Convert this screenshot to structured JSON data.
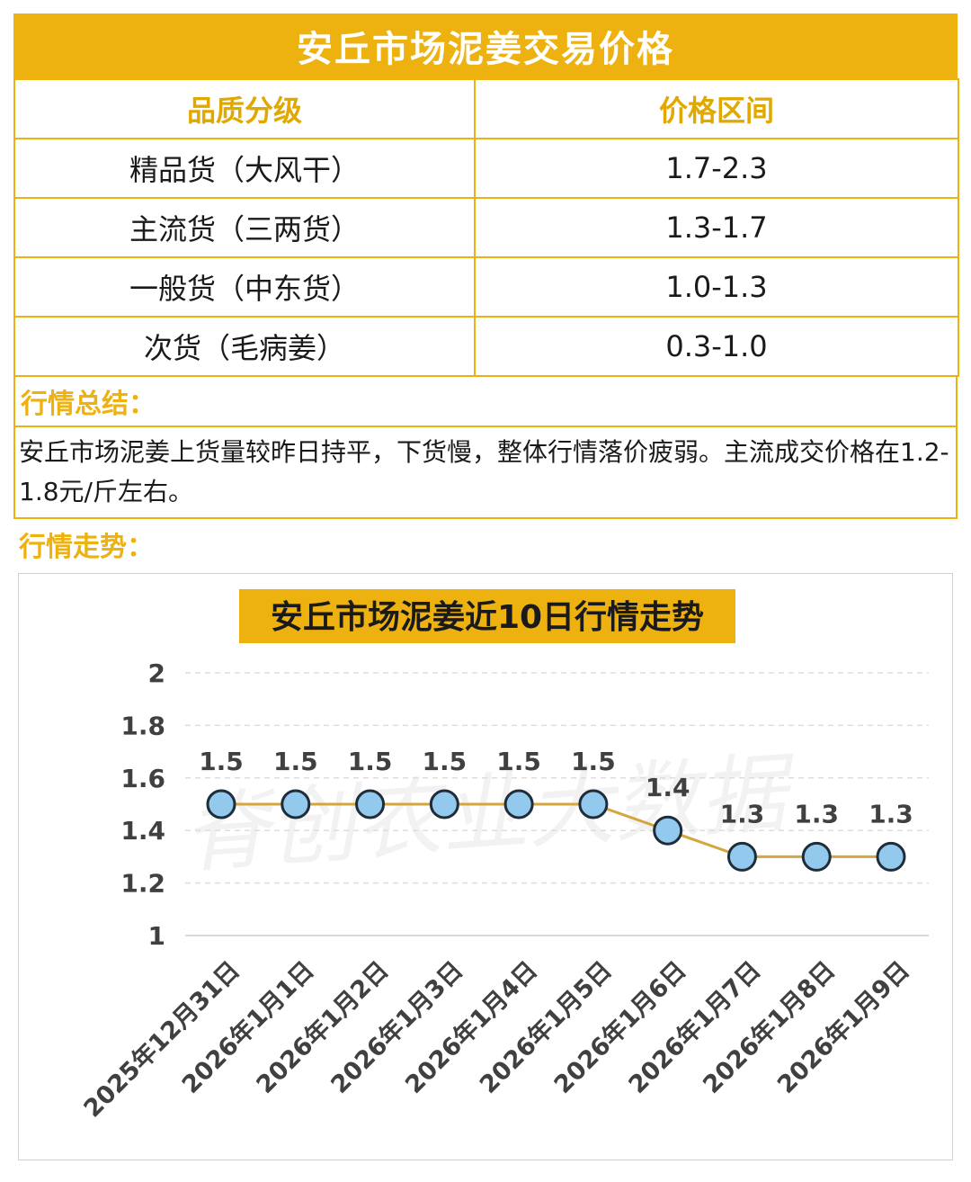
{
  "page": {
    "title": "安丘市场泥姜交易价格",
    "table": {
      "headers": [
        "品质分级",
        "价格区间"
      ],
      "rows": [
        {
          "grade": "精品货（大风干）",
          "range": "1.7-2.3"
        },
        {
          "grade": "主流货（三两货）",
          "range": "1.3-1.7"
        },
        {
          "grade": "一般货（中东货）",
          "range": "1.0-1.3"
        },
        {
          "grade": "次货（毛病姜）",
          "range": "0.3-1.0"
        }
      ]
    },
    "summary_label": "行情总结：",
    "summary_text": "安丘市场泥姜上货量较昨日持平，下货慢，整体行情落价疲弱。主流成交价格在1.2-1.8元/斤左右。",
    "trend_label": "行情走势：",
    "watermark": "脊创农业大数据"
  },
  "colors": {
    "accent": "#EDB20F",
    "line": "#D4A640",
    "marker_fill": "#93C9EC",
    "marker_stroke": "#1f2d3a"
  },
  "chart_data": {
    "type": "line",
    "title": "安丘市场泥姜近10日行情走势",
    "categories": [
      "2025年12月31日",
      "2026年1月1日",
      "2026年1月2日",
      "2026年1月3日",
      "2026年1月4日",
      "2026年1月5日",
      "2026年1月6日",
      "2026年1月7日",
      "2026年1月8日",
      "2026年1月9日"
    ],
    "values": [
      1.5,
      1.5,
      1.5,
      1.5,
      1.5,
      1.5,
      1.4,
      1.3,
      1.3,
      1.3
    ],
    "data_labels": [
      "1.5",
      "1.5",
      "1.5",
      "1.5",
      "1.5",
      "1.5",
      "1.4",
      "1.3",
      "1.3",
      "1.3"
    ],
    "y_ticks": [
      1,
      1.2,
      1.4,
      1.6,
      1.8,
      2
    ],
    "y_tick_labels": [
      "1",
      "1.2",
      "1.4",
      "1.6",
      "1.8",
      "2"
    ],
    "ylim": [
      1,
      2
    ],
    "grid": true,
    "legend": "none"
  }
}
